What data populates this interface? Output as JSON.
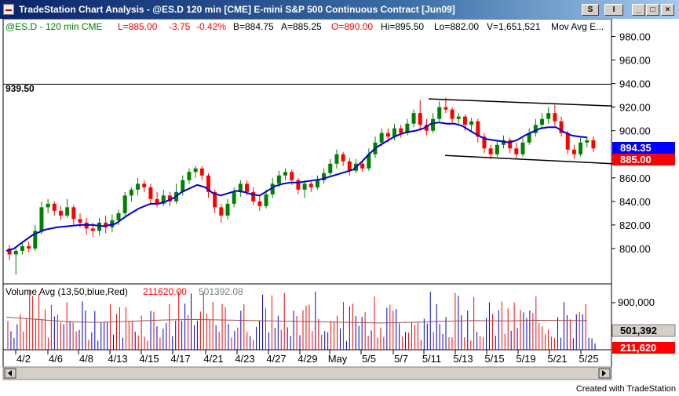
{
  "window": {
    "title": "TradeStation Chart Analysis - @ES.D  120 min  [CME] E-mini S&P 500 Continuous Contract [Jun09]",
    "btn_s": "S",
    "btn_i": "I",
    "btn_min": "_",
    "btn_max": "□",
    "btn_close": "×"
  },
  "price_header": {
    "symbol": "@ES.D - 120 min  CME",
    "last": "L=885.00",
    "change": "-3.75",
    "pct": "-0.42%",
    "bid": "B=884.75",
    "ask": "A=885.25",
    "open": "O=890.00",
    "high": "Hi=895.50",
    "low": "Lo=882.00",
    "volume": "V=1,651,521",
    "indicator": "Mov Avg E..."
  },
  "volume_header": {
    "label": "Volume Avg (13,50,blue,Red)",
    "value1": "211620.00",
    "value2": "501392.08"
  },
  "level_label": "939.50",
  "price_axis": [
    "980.00",
    "960.00",
    "940.00",
    "920.00",
    "900.00",
    "880.00",
    "860.00",
    "840.00",
    "820.00",
    "800.00"
  ],
  "volume_axis": [
    "900,000"
  ],
  "badges": {
    "ma_price": "894.35",
    "last_price": "885.00",
    "avg_volume": "501,392",
    "last_volume": "211,620"
  },
  "date_labels": [
    "4/2",
    "4/6",
    "4/8",
    "4/13",
    "4/15",
    "4/17",
    "4/21",
    "4/23",
    "4/27",
    "4/29",
    "May",
    "5/5",
    "5/7",
    "5/11",
    "5/13",
    "5/15",
    "5/19",
    "5/21",
    "5/25"
  ],
  "footer": "Created with TradeStation",
  "colors": {
    "up": "#008000",
    "down": "#ff0000",
    "ma": "#0000cc",
    "ma_badge": "#0000ff",
    "last_badge": "#ff0000",
    "vol_up": "#0000cc",
    "vol_down": "#ff0000"
  },
  "chart_data": {
    "type": "candlestick",
    "ylim": [
      770,
      995
    ],
    "level_line": 939.5,
    "ma_path": [
      [
        0,
        798
      ],
      [
        10,
        800
      ],
      [
        20,
        805
      ],
      [
        35,
        812
      ],
      [
        50,
        816
      ],
      [
        65,
        818
      ],
      [
        80,
        819
      ],
      [
        95,
        820
      ],
      [
        110,
        820
      ],
      [
        125,
        819
      ],
      [
        140,
        821
      ],
      [
        155,
        828
      ],
      [
        170,
        834
      ],
      [
        185,
        838
      ],
      [
        195,
        838
      ],
      [
        205,
        840
      ],
      [
        215,
        843
      ],
      [
        225,
        848
      ],
      [
        235,
        851
      ],
      [
        245,
        854
      ],
      [
        255,
        852
      ],
      [
        265,
        847
      ],
      [
        275,
        845
      ],
      [
        285,
        847
      ],
      [
        295,
        849
      ],
      [
        305,
        848
      ],
      [
        315,
        846
      ],
      [
        325,
        845
      ],
      [
        335,
        849
      ],
      [
        345,
        853
      ],
      [
        355,
        855
      ],
      [
        365,
        856
      ],
      [
        375,
        856
      ],
      [
        385,
        857
      ],
      [
        395,
        858
      ],
      [
        405,
        859
      ],
      [
        415,
        861
      ],
      [
        425,
        863
      ],
      [
        435,
        865
      ],
      [
        445,
        867
      ],
      [
        455,
        873
      ],
      [
        465,
        880
      ],
      [
        475,
        886
      ],
      [
        485,
        890
      ],
      [
        495,
        894
      ],
      [
        505,
        897
      ],
      [
        515,
        899
      ],
      [
        525,
        900
      ],
      [
        535,
        902
      ],
      [
        545,
        906
      ],
      [
        555,
        907
      ],
      [
        565,
        906
      ],
      [
        575,
        906
      ],
      [
        585,
        904
      ],
      [
        595,
        900
      ],
      [
        605,
        896
      ],
      [
        615,
        893
      ],
      [
        625,
        892
      ],
      [
        635,
        891
      ],
      [
        645,
        890
      ],
      [
        655,
        892
      ],
      [
        665,
        896
      ],
      [
        675,
        899
      ],
      [
        685,
        902
      ],
      [
        695,
        903
      ],
      [
        705,
        903
      ],
      [
        715,
        899
      ],
      [
        725,
        896
      ],
      [
        735,
        895
      ],
      [
        745,
        894.35
      ]
    ],
    "candles": [
      {
        "i": 0,
        "o": 800,
        "c": 795,
        "h": 803,
        "l": 790
      },
      {
        "i": 1,
        "o": 795,
        "c": 798,
        "h": 800,
        "l": 778
      },
      {
        "i": 2,
        "o": 798,
        "c": 802,
        "h": 805,
        "l": 795
      },
      {
        "i": 3,
        "o": 802,
        "c": 800,
        "h": 806,
        "l": 797
      },
      {
        "i": 4,
        "o": 800,
        "c": 815,
        "h": 820,
        "l": 798
      },
      {
        "i": 5,
        "o": 815,
        "c": 835,
        "h": 840,
        "l": 812
      },
      {
        "i": 6,
        "o": 835,
        "c": 838,
        "h": 842,
        "l": 830
      },
      {
        "i": 7,
        "o": 838,
        "c": 832,
        "h": 840,
        "l": 828
      },
      {
        "i": 8,
        "o": 832,
        "c": 828,
        "h": 836,
        "l": 824
      },
      {
        "i": 9,
        "o": 828,
        "c": 835,
        "h": 842,
        "l": 826
      },
      {
        "i": 10,
        "o": 835,
        "c": 825,
        "h": 837,
        "l": 820
      },
      {
        "i": 11,
        "o": 825,
        "c": 822,
        "h": 830,
        "l": 818
      },
      {
        "i": 12,
        "o": 822,
        "c": 817,
        "h": 826,
        "l": 812
      },
      {
        "i": 13,
        "o": 817,
        "c": 815,
        "h": 822,
        "l": 810
      },
      {
        "i": 14,
        "o": 815,
        "c": 822,
        "h": 826,
        "l": 811
      },
      {
        "i": 15,
        "o": 822,
        "c": 818,
        "h": 828,
        "l": 813
      },
      {
        "i": 16,
        "o": 818,
        "c": 824,
        "h": 829,
        "l": 814
      },
      {
        "i": 17,
        "o": 824,
        "c": 830,
        "h": 833,
        "l": 820
      },
      {
        "i": 18,
        "o": 830,
        "c": 845,
        "h": 848,
        "l": 828
      },
      {
        "i": 19,
        "o": 845,
        "c": 850,
        "h": 852,
        "l": 840
      },
      {
        "i": 20,
        "o": 850,
        "c": 855,
        "h": 860,
        "l": 845
      },
      {
        "i": 21,
        "o": 855,
        "c": 852,
        "h": 858,
        "l": 848
      },
      {
        "i": 22,
        "o": 852,
        "c": 842,
        "h": 855,
        "l": 838
      },
      {
        "i": 23,
        "o": 842,
        "c": 838,
        "h": 848,
        "l": 835
      },
      {
        "i": 24,
        "o": 838,
        "c": 845,
        "h": 850,
        "l": 836
      },
      {
        "i": 25,
        "o": 845,
        "c": 840,
        "h": 848,
        "l": 836
      },
      {
        "i": 26,
        "o": 840,
        "c": 848,
        "h": 855,
        "l": 838
      },
      {
        "i": 27,
        "o": 848,
        "c": 858,
        "h": 862,
        "l": 845
      },
      {
        "i": 28,
        "o": 858,
        "c": 865,
        "h": 868,
        "l": 855
      },
      {
        "i": 29,
        "o": 865,
        "c": 868,
        "h": 870,
        "l": 860
      },
      {
        "i": 30,
        "o": 868,
        "c": 862,
        "h": 870,
        "l": 858
      },
      {
        "i": 31,
        "o": 862,
        "c": 848,
        "h": 864,
        "l": 843
      },
      {
        "i": 32,
        "o": 848,
        "c": 835,
        "h": 850,
        "l": 830
      },
      {
        "i": 33,
        "o": 835,
        "c": 828,
        "h": 838,
        "l": 822
      },
      {
        "i": 34,
        "o": 828,
        "c": 838,
        "h": 842,
        "l": 825
      },
      {
        "i": 35,
        "o": 838,
        "c": 848,
        "h": 852,
        "l": 835
      },
      {
        "i": 36,
        "o": 848,
        "c": 855,
        "h": 858,
        "l": 844
      },
      {
        "i": 37,
        "o": 855,
        "c": 848,
        "h": 858,
        "l": 845
      },
      {
        "i": 38,
        "o": 848,
        "c": 840,
        "h": 852,
        "l": 837
      },
      {
        "i": 39,
        "o": 840,
        "c": 836,
        "h": 845,
        "l": 832
      },
      {
        "i": 40,
        "o": 836,
        "c": 846,
        "h": 850,
        "l": 834
      },
      {
        "i": 41,
        "o": 846,
        "c": 855,
        "h": 860,
        "l": 843
      },
      {
        "i": 42,
        "o": 855,
        "c": 862,
        "h": 866,
        "l": 852
      },
      {
        "i": 43,
        "o": 862,
        "c": 865,
        "h": 868,
        "l": 858
      },
      {
        "i": 44,
        "o": 865,
        "c": 858,
        "h": 867,
        "l": 854
      },
      {
        "i": 45,
        "o": 858,
        "c": 850,
        "h": 860,
        "l": 846
      },
      {
        "i": 46,
        "o": 850,
        "c": 855,
        "h": 858,
        "l": 843
      },
      {
        "i": 47,
        "o": 855,
        "c": 852,
        "h": 858,
        "l": 848
      },
      {
        "i": 48,
        "o": 852,
        "c": 858,
        "h": 862,
        "l": 850
      },
      {
        "i": 49,
        "o": 858,
        "c": 864,
        "h": 868,
        "l": 855
      },
      {
        "i": 50,
        "o": 864,
        "c": 872,
        "h": 876,
        "l": 862
      },
      {
        "i": 51,
        "o": 872,
        "c": 880,
        "h": 884,
        "l": 868
      },
      {
        "i": 52,
        "o": 880,
        "c": 874,
        "h": 882,
        "l": 870
      },
      {
        "i": 53,
        "o": 874,
        "c": 866,
        "h": 877,
        "l": 862
      },
      {
        "i": 54,
        "o": 866,
        "c": 872,
        "h": 876,
        "l": 864
      },
      {
        "i": 55,
        "o": 872,
        "c": 868,
        "h": 875,
        "l": 865
      },
      {
        "i": 56,
        "o": 868,
        "c": 880,
        "h": 885,
        "l": 866
      },
      {
        "i": 57,
        "o": 880,
        "c": 890,
        "h": 895,
        "l": 877
      },
      {
        "i": 58,
        "o": 890,
        "c": 898,
        "h": 902,
        "l": 887
      },
      {
        "i": 59,
        "o": 898,
        "c": 895,
        "h": 902,
        "l": 890
      },
      {
        "i": 60,
        "o": 895,
        "c": 902,
        "h": 906,
        "l": 892
      },
      {
        "i": 61,
        "o": 902,
        "c": 898,
        "h": 905,
        "l": 894
      },
      {
        "i": 62,
        "o": 898,
        "c": 906,
        "h": 910,
        "l": 896
      },
      {
        "i": 63,
        "o": 906,
        "c": 915,
        "h": 918,
        "l": 903
      },
      {
        "i": 64,
        "o": 915,
        "c": 905,
        "h": 926,
        "l": 900
      },
      {
        "i": 65,
        "o": 905,
        "c": 900,
        "h": 910,
        "l": 896
      },
      {
        "i": 66,
        "o": 900,
        "c": 910,
        "h": 915,
        "l": 898
      },
      {
        "i": 67,
        "o": 910,
        "c": 920,
        "h": 925,
        "l": 908
      },
      {
        "i": 68,
        "o": 920,
        "c": 918,
        "h": 928,
        "l": 915
      },
      {
        "i": 69,
        "o": 918,
        "c": 910,
        "h": 920,
        "l": 906
      },
      {
        "i": 70,
        "o": 910,
        "c": 912,
        "h": 915,
        "l": 905
      },
      {
        "i": 71,
        "o": 912,
        "c": 905,
        "h": 914,
        "l": 900
      },
      {
        "i": 72,
        "o": 905,
        "c": 908,
        "h": 911,
        "l": 900
      },
      {
        "i": 73,
        "o": 908,
        "c": 895,
        "h": 910,
        "l": 890
      },
      {
        "i": 74,
        "o": 895,
        "c": 885,
        "h": 898,
        "l": 881
      },
      {
        "i": 75,
        "o": 885,
        "c": 880,
        "h": 888,
        "l": 876
      },
      {
        "i": 76,
        "o": 880,
        "c": 888,
        "h": 892,
        "l": 878
      },
      {
        "i": 77,
        "o": 888,
        "c": 892,
        "h": 896,
        "l": 885
      },
      {
        "i": 78,
        "o": 892,
        "c": 885,
        "h": 894,
        "l": 881
      },
      {
        "i": 79,
        "o": 885,
        "c": 880,
        "h": 890,
        "l": 876
      },
      {
        "i": 80,
        "o": 880,
        "c": 890,
        "h": 894,
        "l": 878
      },
      {
        "i": 81,
        "o": 890,
        "c": 898,
        "h": 902,
        "l": 888
      },
      {
        "i": 82,
        "o": 898,
        "c": 905,
        "h": 910,
        "l": 895
      },
      {
        "i": 83,
        "o": 905,
        "c": 910,
        "h": 915,
        "l": 902
      },
      {
        "i": 84,
        "o": 910,
        "c": 915,
        "h": 920,
        "l": 906
      },
      {
        "i": 85,
        "o": 915,
        "c": 908,
        "h": 922,
        "l": 904
      },
      {
        "i": 86,
        "o": 908,
        "c": 898,
        "h": 912,
        "l": 895
      },
      {
        "i": 87,
        "o": 898,
        "c": 884,
        "h": 900,
        "l": 880
      },
      {
        "i": 88,
        "o": 884,
        "c": 880,
        "h": 888,
        "l": 876
      },
      {
        "i": 89,
        "o": 880,
        "c": 890,
        "h": 894,
        "l": 878
      },
      {
        "i": 90,
        "o": 890,
        "c": 892,
        "h": 895,
        "l": 886
      },
      {
        "i": 91,
        "o": 892,
        "c": 885,
        "h": 895.5,
        "l": 882
      }
    ],
    "trendlines": [
      {
        "x1": 546,
        "y1": 927,
        "x2": 780,
        "y2": 921
      },
      {
        "x1": 567,
        "y1": 879,
        "x2": 780,
        "y2": 872
      }
    ],
    "volume_ylim": [
      0,
      1050000
    ],
    "volume_avg_path": [
      [
        0,
        560000
      ],
      [
        40,
        520000
      ],
      [
        80,
        480000
      ],
      [
        120,
        470000
      ],
      [
        160,
        490000
      ],
      [
        200,
        510000
      ],
      [
        240,
        520000
      ],
      [
        280,
        510000
      ],
      [
        320,
        500000
      ],
      [
        360,
        490000
      ],
      [
        400,
        480000
      ],
      [
        440,
        470000
      ],
      [
        480,
        460000
      ],
      [
        520,
        470000
      ],
      [
        560,
        490000
      ],
      [
        600,
        500000
      ],
      [
        640,
        495000
      ],
      [
        680,
        505000
      ],
      [
        720,
        502000
      ],
      [
        745,
        501392
      ]
    ]
  }
}
